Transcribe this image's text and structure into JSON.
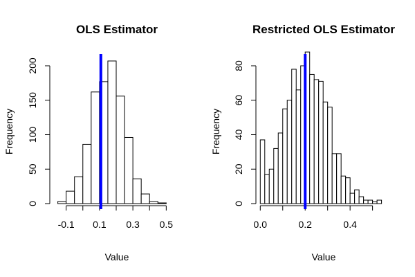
{
  "chart_data": [
    {
      "type": "bar",
      "title": "OLS Estimator",
      "xlabel": "Value",
      "ylabel": "Frequency",
      "bin_width": 0.05,
      "xlim": [
        -0.15,
        0.55
      ],
      "ylim": [
        0,
        210
      ],
      "x_ticks": [
        -0.1,
        0.1,
        0.3,
        0.5
      ],
      "x_tick_labels": [
        "-0.1",
        "0.1",
        "0.3",
        "0.5"
      ],
      "x_minor_ticks": [
        0.0,
        0.2,
        0.4
      ],
      "y_ticks": [
        0,
        50,
        100,
        150,
        200
      ],
      "y_tick_labels": [
        "0",
        "50",
        "100",
        "150",
        "200"
      ],
      "bins": [
        {
          "start": -0.15,
          "end": -0.1,
          "count": 3
        },
        {
          "start": -0.1,
          "end": -0.05,
          "count": 18
        },
        {
          "start": -0.05,
          "end": 0.0,
          "count": 39
        },
        {
          "start": 0.0,
          "end": 0.05,
          "count": 86
        },
        {
          "start": 0.05,
          "end": 0.1,
          "count": 162
        },
        {
          "start": 0.1,
          "end": 0.15,
          "count": 177
        },
        {
          "start": 0.15,
          "end": 0.2,
          "count": 207
        },
        {
          "start": 0.2,
          "end": 0.25,
          "count": 156
        },
        {
          "start": 0.25,
          "end": 0.3,
          "count": 96
        },
        {
          "start": 0.3,
          "end": 0.35,
          "count": 36
        },
        {
          "start": 0.35,
          "end": 0.4,
          "count": 14
        },
        {
          "start": 0.4,
          "end": 0.45,
          "count": 3
        },
        {
          "start": 0.45,
          "end": 0.5,
          "count": 1
        }
      ],
      "reference_line": {
        "x": 0.108,
        "color": "#0000ff"
      },
      "bar_fill": "#ffffff",
      "bar_stroke": "#000000"
    },
    {
      "type": "bar",
      "title": "Restricted OLS Estimator",
      "xlabel": "Value",
      "ylabel": "Frequency",
      "bin_width": 0.02,
      "xlim": [
        -0.02,
        0.54
      ],
      "ylim": [
        0,
        90
      ],
      "x_ticks": [
        0.0,
        0.2,
        0.4
      ],
      "x_tick_labels": [
        "0.0",
        "0.2",
        "0.4"
      ],
      "x_minor_ticks": [
        0.1,
        0.3,
        0.5
      ],
      "y_ticks": [
        0,
        20,
        40,
        60,
        80
      ],
      "y_tick_labels": [
        "0",
        "20",
        "40",
        "60",
        "80"
      ],
      "bins": [
        {
          "start": 0.0,
          "end": 0.02,
          "count": 37
        },
        {
          "start": 0.02,
          "end": 0.04,
          "count": 17
        },
        {
          "start": 0.04,
          "end": 0.06,
          "count": 20
        },
        {
          "start": 0.06,
          "end": 0.08,
          "count": 32
        },
        {
          "start": 0.08,
          "end": 0.1,
          "count": 41
        },
        {
          "start": 0.1,
          "end": 0.12,
          "count": 55
        },
        {
          "start": 0.12,
          "end": 0.14,
          "count": 60
        },
        {
          "start": 0.14,
          "end": 0.16,
          "count": 78
        },
        {
          "start": 0.16,
          "end": 0.18,
          "count": 66
        },
        {
          "start": 0.18,
          "end": 0.2,
          "count": 80
        },
        {
          "start": 0.2,
          "end": 0.22,
          "count": 88
        },
        {
          "start": 0.22,
          "end": 0.24,
          "count": 75
        },
        {
          "start": 0.24,
          "end": 0.26,
          "count": 72
        },
        {
          "start": 0.26,
          "end": 0.28,
          "count": 71
        },
        {
          "start": 0.28,
          "end": 0.3,
          "count": 59
        },
        {
          "start": 0.3,
          "end": 0.32,
          "count": 56
        },
        {
          "start": 0.32,
          "end": 0.34,
          "count": 29
        },
        {
          "start": 0.34,
          "end": 0.36,
          "count": 29
        },
        {
          "start": 0.36,
          "end": 0.38,
          "count": 16
        },
        {
          "start": 0.38,
          "end": 0.4,
          "count": 15
        },
        {
          "start": 0.4,
          "end": 0.42,
          "count": 6
        },
        {
          "start": 0.42,
          "end": 0.44,
          "count": 8
        },
        {
          "start": 0.44,
          "end": 0.46,
          "count": 4
        },
        {
          "start": 0.46,
          "end": 0.48,
          "count": 2
        },
        {
          "start": 0.48,
          "end": 0.5,
          "count": 2
        },
        {
          "start": 0.5,
          "end": 0.52,
          "count": 1
        },
        {
          "start": 0.52,
          "end": 0.54,
          "count": 2
        }
      ],
      "reference_line": {
        "x": 0.2,
        "color": "#0000ff"
      },
      "bar_fill": "#ffffff",
      "bar_stroke": "#000000"
    }
  ]
}
